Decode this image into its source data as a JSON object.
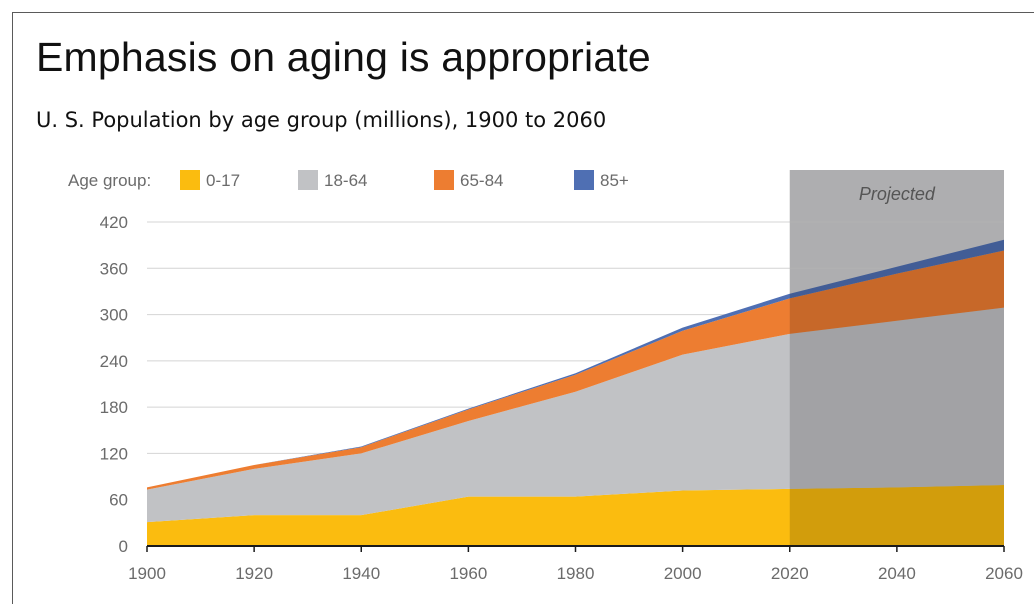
{
  "slide": {
    "title": "Emphasis on aging is appropriate",
    "subtitle": "U. S. Population by age group (millions), 1900 to 2060"
  },
  "chart_data": {
    "type": "area",
    "stacked": true,
    "x": [
      1900,
      1920,
      1940,
      1960,
      1980,
      2000,
      2020,
      2040,
      2060
    ],
    "series": [
      {
        "name": "0-17",
        "color": "#fbbc0f",
        "values": [
          31,
          40,
          40,
          64,
          64,
          72,
          74,
          76,
          79
        ]
      },
      {
        "name": "18-64",
        "color": "#c1c2c5",
        "values": [
          42,
          60,
          80,
          98,
          136,
          176,
          201,
          216,
          230
        ]
      },
      {
        "name": "65-84",
        "color": "#ed7d31",
        "values": [
          3,
          5,
          8,
          15,
          22,
          31,
          46,
          61,
          74
        ]
      },
      {
        "name": "85+",
        "color": "#4f6fb3",
        "values": [
          0,
          0,
          1,
          1,
          2,
          4,
          6,
          9,
          14
        ]
      }
    ],
    "legend_title": "Age group:",
    "legend_position": "top",
    "y_ticks": [
      "0",
      "60",
      "120",
      "180",
      "240",
      "300",
      "360",
      "420"
    ],
    "x_ticks": [
      "1900",
      "1920",
      "1940",
      "1960",
      "1980",
      "2000",
      "2020",
      "2040",
      "2060"
    ],
    "ylim": [
      0,
      420
    ],
    "xlim": [
      1900,
      2060
    ],
    "grid": "horizontal",
    "projection": {
      "label": "Projected",
      "start": 2020,
      "end": 2060
    }
  }
}
